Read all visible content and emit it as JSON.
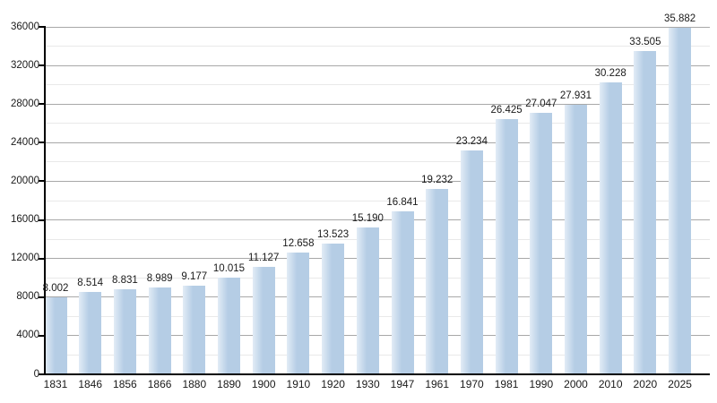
{
  "chart_data": {
    "type": "bar",
    "title": "",
    "xlabel": "",
    "ylabel": "",
    "categories": [
      "1831",
      "1846",
      "1856",
      "1866",
      "1880",
      "1890",
      "1900",
      "1910",
      "1920",
      "1930",
      "1947",
      "1961",
      "1970",
      "1981",
      "1990",
      "2000",
      "2010",
      "2020",
      "2025"
    ],
    "values": [
      8002,
      8514,
      8831,
      8989,
      9177,
      10015,
      11127,
      12658,
      13523,
      15190,
      16841,
      19232,
      23234,
      26425,
      27047,
      27931,
      30228,
      33505,
      35882
    ],
    "value_labels": [
      "8.002",
      "8.514",
      "8.831",
      "8.989",
      "9.177",
      "10.015",
      "11.127",
      "12.658",
      "13.523",
      "15.190",
      "16.841",
      "19.232",
      "23.234",
      "26.425",
      "27.047",
      "27.931",
      "30.228",
      "33.505",
      "35.882"
    ],
    "ylim": [
      0,
      36000
    ],
    "y_major_ticks": [
      0,
      4000,
      8000,
      12000,
      16000,
      20000,
      24000,
      28000,
      32000,
      36000
    ],
    "y_minor_step": 2000,
    "grid": "on",
    "legend": "none",
    "colors": {
      "bar_main": "#b5cde5",
      "bar_gradient_left": "#e2ecf6",
      "major_grid": "#a8a8a8",
      "minor_grid": "#e9e9e9",
      "axis": "#000000",
      "text": "#1a1a1a",
      "background": "#ffffff"
    }
  }
}
